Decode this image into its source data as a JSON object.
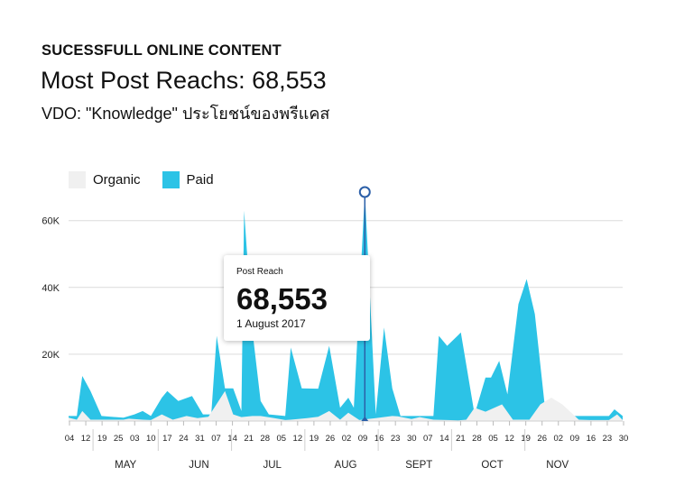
{
  "header": {
    "kicker": "SUCESSFULL ONLINE CONTENT",
    "headline": "Most Post Reachs: 68,553",
    "subtitle": "VDO:  \"Knowledge\" ประโยชน์ของพรีแคส"
  },
  "colors": {
    "organic": "#f0f0f0",
    "paid": "#2cc3e6",
    "marker": "#2b5fa8",
    "grid": "#dcdcdc"
  },
  "tooltip": {
    "label": "Post Reach",
    "value": "68,553",
    "date": "1 August 2017"
  },
  "chart_data": {
    "type": "area",
    "grid": true,
    "legend": "top-left",
    "ylim": [
      0,
      68553
    ],
    "yticks": [
      20000,
      40000,
      60000
    ],
    "ytick_labels": [
      "20K",
      "40K",
      "60K"
    ],
    "xtick_labels": [
      "04",
      "12",
      "19",
      "25",
      "03",
      "10",
      "17",
      "24",
      "31",
      "07",
      "14",
      "21",
      "28",
      "05",
      "12",
      "19",
      "26",
      "02",
      "09",
      "16",
      "23",
      "30",
      "07",
      "14",
      "21",
      "28",
      "05",
      "12",
      "19",
      "26",
      "02",
      "09",
      "16",
      "23",
      "30"
    ],
    "month_labels": [
      "MAY",
      "JUN",
      "JUL",
      "AUG",
      "SEPT",
      "OCT",
      "NOV"
    ],
    "highlight": {
      "label": "1 August 2017",
      "value": 68553
    },
    "series": [
      {
        "name": "Organic",
        "points": [
          [
            0,
            1000
          ],
          [
            3,
            400
          ],
          [
            5,
            3000
          ],
          [
            8,
            400
          ],
          [
            12,
            400
          ],
          [
            20,
            400
          ],
          [
            22,
            700
          ],
          [
            27,
            400
          ],
          [
            30,
            300
          ],
          [
            34,
            2000
          ],
          [
            38,
            400
          ],
          [
            43,
            1500
          ],
          [
            47,
            900
          ],
          [
            51,
            1300
          ],
          [
            57,
            9000
          ],
          [
            60,
            2000
          ],
          [
            63,
            1200
          ],
          [
            67,
            1500
          ],
          [
            70,
            1500
          ],
          [
            75,
            900
          ],
          [
            79,
            300
          ],
          [
            81,
            400
          ],
          [
            87,
            900
          ],
          [
            91,
            1300
          ],
          [
            95,
            3000
          ],
          [
            99,
            400
          ],
          [
            102,
            2500
          ],
          [
            106,
            300
          ],
          [
            108,
            500
          ],
          [
            112,
            900
          ],
          [
            118,
            1500
          ],
          [
            120,
            1400
          ],
          [
            125,
            600
          ],
          [
            128,
            1200
          ],
          [
            133,
            400
          ],
          [
            138,
            300
          ],
          [
            142,
            200
          ],
          [
            145,
            400
          ],
          [
            148,
            4000
          ],
          [
            152,
            2800
          ],
          [
            158,
            5000
          ],
          [
            162,
            400
          ],
          [
            168,
            400
          ],
          [
            172,
            5000
          ],
          [
            176,
            7000
          ],
          [
            180,
            5000
          ],
          [
            186,
            400
          ],
          [
            190,
            300
          ],
          [
            197,
            300
          ],
          [
            200,
            2000
          ],
          [
            202,
            300
          ]
        ]
      },
      {
        "name": "Paid",
        "points": [
          [
            0,
            1500
          ],
          [
            3,
            1500
          ],
          [
            5,
            13500
          ],
          [
            8,
            9000
          ],
          [
            12,
            1500
          ],
          [
            20,
            1000
          ],
          [
            24,
            2000
          ],
          [
            27,
            3000
          ],
          [
            30,
            1500
          ],
          [
            34,
            7000
          ],
          [
            36,
            9000
          ],
          [
            40,
            6000
          ],
          [
            45,
            7500
          ],
          [
            49,
            2000
          ],
          [
            52,
            2000
          ],
          [
            54,
            25500
          ],
          [
            57,
            9800
          ],
          [
            60,
            9800
          ],
          [
            63,
            3000
          ],
          [
            64,
            63000
          ],
          [
            67,
            27000
          ],
          [
            70,
            6000
          ],
          [
            73,
            2000
          ],
          [
            79,
            1500
          ],
          [
            81,
            22000
          ],
          [
            85,
            9800
          ],
          [
            91,
            9700
          ],
          [
            95,
            22500
          ],
          [
            99,
            4000
          ],
          [
            102,
            7000
          ],
          [
            104,
            4000
          ],
          [
            108,
            68553
          ],
          [
            112,
            2000
          ],
          [
            115,
            28000
          ],
          [
            118,
            9800
          ],
          [
            121,
            1500
          ],
          [
            126,
            1500
          ],
          [
            130,
            1500
          ],
          [
            133,
            1500
          ],
          [
            135,
            25500
          ],
          [
            138,
            22500
          ],
          [
            143,
            26500
          ],
          [
            148,
            2000
          ],
          [
            152,
            13000
          ],
          [
            154,
            13000
          ],
          [
            157,
            18000
          ],
          [
            160,
            8000
          ],
          [
            164,
            35000
          ],
          [
            167,
            42500
          ],
          [
            170,
            32000
          ],
          [
            174,
            1500
          ],
          [
            178,
            1500
          ],
          [
            182,
            1500
          ],
          [
            186,
            1500
          ],
          [
            190,
            1500
          ],
          [
            194,
            1500
          ],
          [
            197,
            1500
          ],
          [
            199,
            3500
          ],
          [
            202,
            1500
          ]
        ]
      }
    ]
  }
}
